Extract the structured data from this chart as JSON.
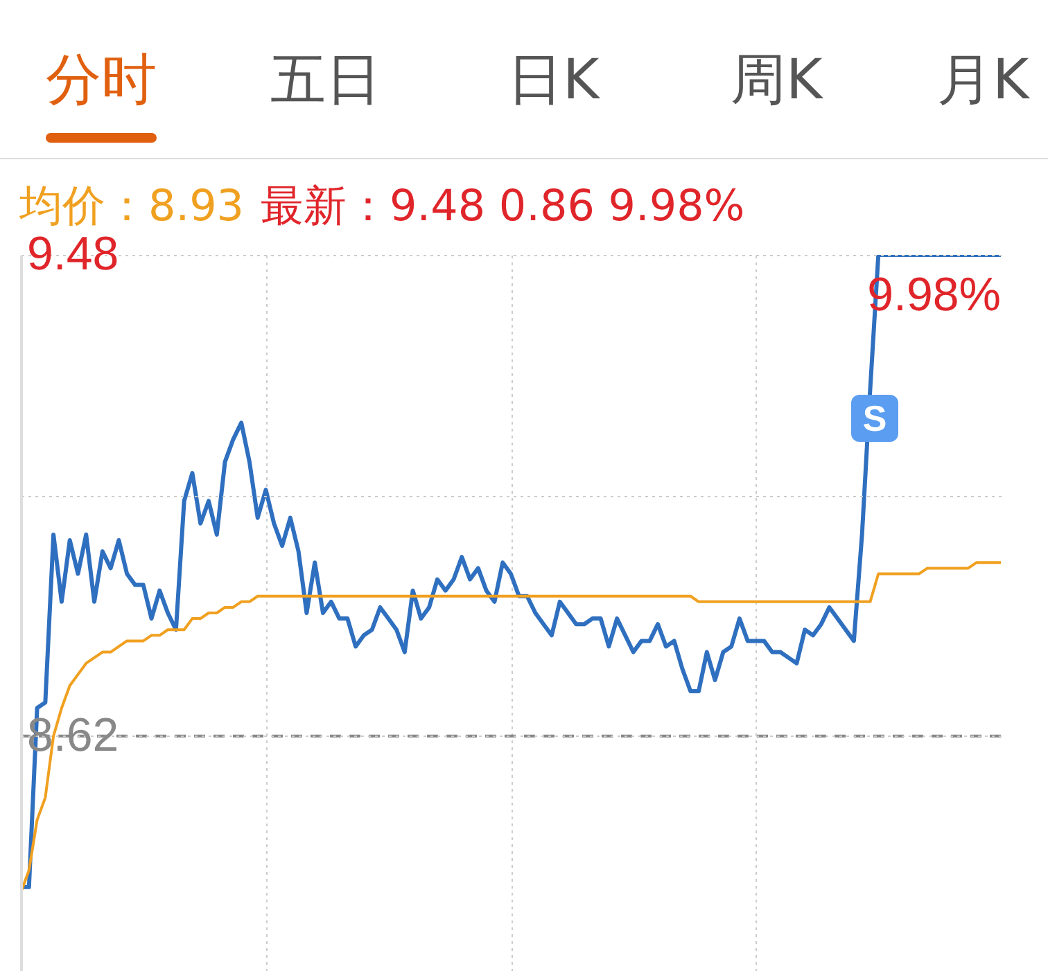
{
  "chart_data": {
    "type": "line",
    "annotations": [
      "分时",
      "五日",
      "日K",
      "周K",
      "月K",
      "均价：8.93",
      "最新：9.48  0.86  9.98%",
      "9.98%",
      "S"
    ],
    "categories": [
      null,
      null,
      null,
      null,
      null,
      null,
      null,
      null,
      null,
      null,
      null,
      null,
      null,
      null,
      null,
      null,
      null,
      null,
      null,
      null,
      null,
      null,
      null,
      null,
      null,
      null,
      null,
      null,
      null,
      null,
      null,
      null,
      null,
      null,
      null,
      null,
      null,
      null,
      null,
      null,
      null,
      null,
      null,
      null,
      null,
      null,
      null,
      null,
      null,
      null,
      null,
      null,
      null,
      null,
      null,
      null,
      null,
      null,
      null,
      null,
      null,
      null,
      null,
      null,
      null,
      null,
      null,
      null,
      null,
      null,
      null,
      null,
      null,
      null,
      null,
      null,
      null,
      null,
      null,
      null,
      null,
      null,
      null,
      null,
      null,
      null,
      null,
      null,
      null,
      null,
      null,
      null,
      null,
      null,
      null,
      null,
      null,
      null,
      null,
      null,
      null,
      null,
      null,
      null,
      null,
      null,
      null,
      null,
      null,
      null,
      null,
      null,
      null,
      null,
      null,
      null,
      null,
      null,
      null,
      null,
      null
    ],
    "series": [
      {
        "color": "#2f6fbf",
        "values": [
          8.35,
          8.35,
          8.67,
          8.68,
          8.98,
          8.86,
          8.97,
          8.91,
          8.98,
          8.86,
          8.95,
          8.92,
          8.97,
          8.91,
          8.89,
          8.89,
          8.83,
          8.88,
          8.84,
          8.81,
          9.04,
          9.09,
          9.0,
          9.04,
          8.98,
          9.11,
          9.15,
          9.18,
          9.11,
          9.01,
          9.06,
          9.0,
          8.96,
          9.01,
          8.95,
          8.84,
          8.93,
          8.84,
          8.86,
          8.83,
          8.83,
          8.78,
          8.8,
          8.81,
          8.85,
          8.83,
          8.81,
          8.77,
          8.88,
          8.83,
          8.85,
          8.9,
          8.88,
          8.9,
          8.94,
          8.9,
          8.92,
          8.88,
          8.86,
          8.93,
          8.91,
          8.87,
          8.87,
          8.84,
          8.82,
          8.8,
          8.86,
          8.84,
          8.82,
          8.82,
          8.83,
          8.83,
          8.78,
          8.83,
          8.8,
          8.77,
          8.79,
          8.79,
          8.82,
          8.78,
          8.79,
          8.74,
          8.7,
          8.7,
          8.77,
          8.72,
          8.77,
          8.78,
          8.83,
          8.79,
          8.79,
          8.79,
          8.77,
          8.77,
          8.76,
          8.75,
          8.81,
          8.8,
          8.82,
          8.85,
          8.83,
          8.81,
          8.79,
          8.98,
          9.24,
          9.48,
          9.48,
          9.48,
          9.48,
          9.48,
          9.48,
          9.48,
          9.48,
          9.48,
          9.48,
          9.48,
          9.48,
          9.48,
          9.48,
          9.48,
          9.48
        ]
      },
      {
        "color": "#f0a020",
        "values": [
          8.34,
          8.38,
          8.47,
          8.51,
          8.62,
          8.67,
          8.71,
          8.73,
          8.75,
          8.76,
          8.77,
          8.77,
          8.78,
          8.79,
          8.79,
          8.79,
          8.8,
          8.8,
          8.81,
          8.81,
          8.81,
          8.83,
          8.83,
          8.84,
          8.84,
          8.85,
          8.85,
          8.86,
          8.86,
          8.87,
          8.87,
          8.87,
          8.87,
          8.87,
          8.87,
          8.87,
          8.87,
          8.87,
          8.87,
          8.87,
          8.87,
          8.87,
          8.87,
          8.87,
          8.87,
          8.87,
          8.87,
          8.87,
          8.87,
          8.87,
          8.87,
          8.87,
          8.87,
          8.87,
          8.87,
          8.87,
          8.87,
          8.87,
          8.87,
          8.87,
          8.87,
          8.87,
          8.87,
          8.87,
          8.87,
          8.87,
          8.87,
          8.87,
          8.87,
          8.87,
          8.87,
          8.87,
          8.87,
          8.87,
          8.87,
          8.87,
          8.87,
          8.87,
          8.87,
          8.87,
          8.87,
          8.87,
          8.87,
          8.86,
          8.86,
          8.86,
          8.86,
          8.86,
          8.86,
          8.86,
          8.86,
          8.86,
          8.86,
          8.86,
          8.86,
          8.86,
          8.86,
          8.86,
          8.86,
          8.86,
          8.86,
          8.86,
          8.86,
          8.86,
          8.86,
          8.91,
          8.91,
          8.91,
          8.91,
          8.91,
          8.91,
          8.92,
          8.92,
          8.92,
          8.92,
          8.92,
          8.92,
          8.93,
          8.93,
          8.93,
          8.93
        ]
      }
    ],
    "ylim": [
      8.2,
      9.48
    ],
    "yticks": [
      9.48,
      {
        "value": 9.05,
        "label": null
      },
      8.62
    ],
    "tick_labels": "y",
    "grid": true,
    "ref_lines": [
      {
        "axis": "y",
        "value": 8.62,
        "color": "#888888",
        "line_style": "dashed"
      }
    ]
  }
}
